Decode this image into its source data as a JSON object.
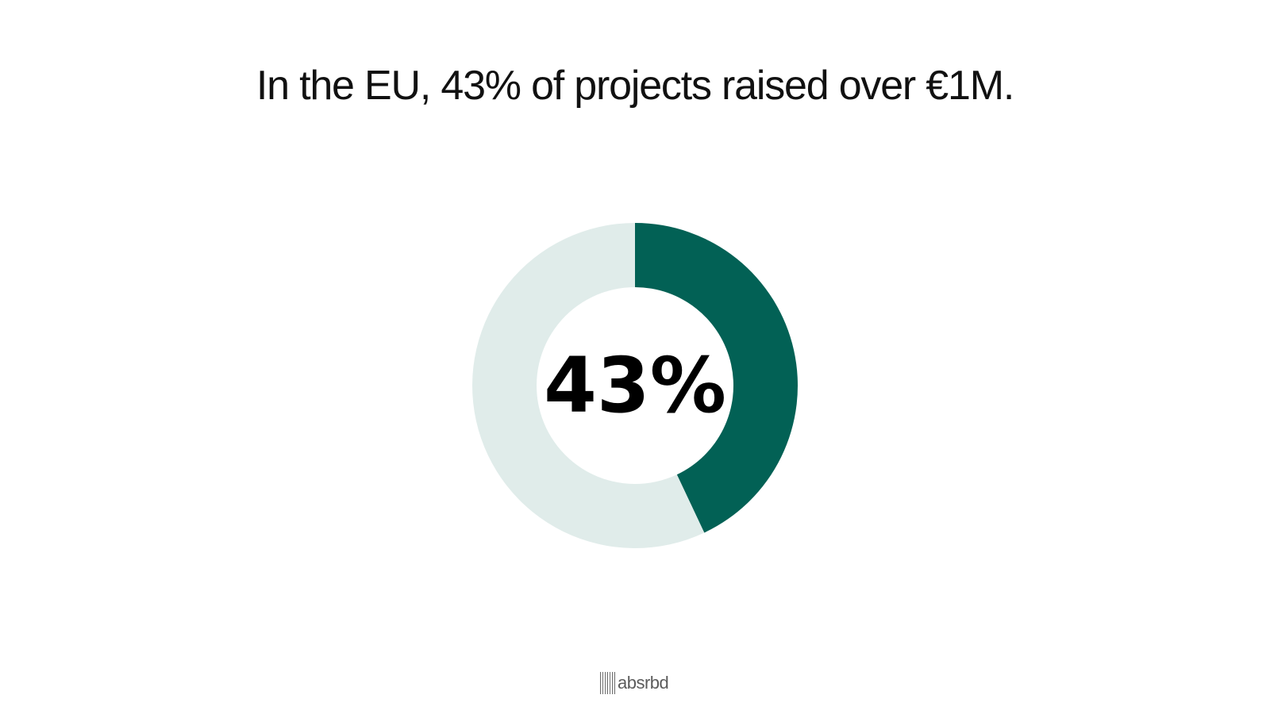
{
  "title": "In the EU, 43% of projects raised over €1M.",
  "logo": {
    "text": "absrbd"
  },
  "colors": {
    "accent": "#026155",
    "remainder": "#e0ecea",
    "title": "#111111"
  },
  "chart_data": {
    "type": "pie",
    "style": "donut",
    "title": "In the EU, 43% of projects raised over €1M.",
    "center_label": "43%",
    "slices": [
      {
        "value": 43,
        "color": "#026155"
      },
      {
        "value": 57,
        "color": "#e0ecea"
      }
    ],
    "start": "top",
    "direction": "clockwise",
    "legend": "none"
  }
}
